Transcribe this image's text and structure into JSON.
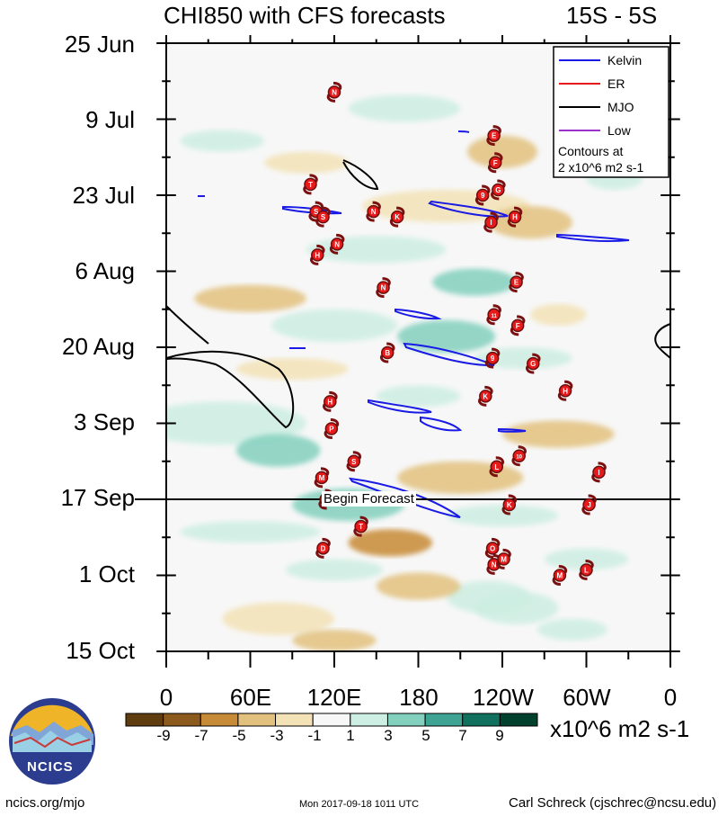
{
  "header": {
    "title_left": "CHI850 with CFS forecasts",
    "title_right": "15S - 5S"
  },
  "chart_data": {
    "type": "heatmap",
    "y_axis": {
      "direction": "time increasing downward",
      "range": [
        "25 Jun",
        "15 Oct"
      ],
      "tick_labels": [
        "25 Jun",
        "9 Jul",
        "23 Jul",
        "6 Aug",
        "20 Aug",
        "3 Sep",
        "17 Sep",
        "1 Oct",
        "15 Oct"
      ]
    },
    "x_axis": {
      "range_deg_east": [
        0,
        360
      ],
      "tick_labels": [
        "0",
        "60E",
        "120E",
        "180",
        "120W",
        "60W",
        "0"
      ]
    },
    "colorbar": {
      "labels": [
        "-9",
        "-7",
        "-5",
        "-3",
        "-1",
        "1",
        "3",
        "5",
        "7",
        "9"
      ],
      "units": "x10^6 m2 s-1",
      "colors": [
        "#603d0f",
        "#8c5a1d",
        "#c78a36",
        "#e2c17e",
        "#f3e2b6",
        "#f7f7f7",
        "#cdeee2",
        "#83d0be",
        "#3ea393",
        "#11705e",
        "#03412f"
      ]
    },
    "legend": {
      "placement": "top-right",
      "entries": [
        {
          "name": "Kelvin",
          "color": "#1a1ae6"
        },
        {
          "name": "ER",
          "color": "#e61a1a"
        },
        {
          "name": "MJO",
          "color": "#000000"
        },
        {
          "name": "Low",
          "color": "#9933cc"
        }
      ],
      "contour_note_1": "Contours at",
      "contour_note_2": "2 x10^6 m2 s-1"
    },
    "forecast_line": {
      "date": "17 Sep",
      "label": "Begin Forecast"
    },
    "storm_markers": [
      {
        "label": "N",
        "lon": 120,
        "day": 9
      },
      {
        "label": "E",
        "lon": 234,
        "day": 17
      },
      {
        "label": "F",
        "lon": 235,
        "day": 22
      },
      {
        "label": "T",
        "lon": 103,
        "day": 26
      },
      {
        "label": "S",
        "lon": 107,
        "day": 31
      },
      {
        "label": "S",
        "lon": 112,
        "day": 32
      },
      {
        "label": "N",
        "lon": 148,
        "day": 31
      },
      {
        "label": "K",
        "lon": 165,
        "day": 32
      },
      {
        "label": "9",
        "lon": 226,
        "day": 28
      },
      {
        "label": "G",
        "lon": 237,
        "day": 27
      },
      {
        "label": "I",
        "lon": 232,
        "day": 33
      },
      {
        "label": "H",
        "lon": 249,
        "day": 32
      },
      {
        "label": "N",
        "lon": 122,
        "day": 37
      },
      {
        "label": "H",
        "lon": 108,
        "day": 39
      },
      {
        "label": "N",
        "lon": 155,
        "day": 45
      },
      {
        "label": "E",
        "lon": 250,
        "day": 44
      },
      {
        "label": "11",
        "lon": 234,
        "day": 50
      },
      {
        "label": "F",
        "lon": 251,
        "day": 52
      },
      {
        "label": "B",
        "lon": 158,
        "day": 57
      },
      {
        "label": "9",
        "lon": 233,
        "day": 58
      },
      {
        "label": "G",
        "lon": 262,
        "day": 59
      },
      {
        "label": "H",
        "lon": 117,
        "day": 66
      },
      {
        "label": "K",
        "lon": 228,
        "day": 65
      },
      {
        "label": "H",
        "lon": 285,
        "day": 64
      },
      {
        "label": "P",
        "lon": 118,
        "day": 71
      },
      {
        "label": "S",
        "lon": 134,
        "day": 77
      },
      {
        "label": "10",
        "lon": 252,
        "day": 76
      },
      {
        "label": "L",
        "lon": 236,
        "day": 78
      },
      {
        "label": "I",
        "lon": 309,
        "day": 79
      },
      {
        "label": "M",
        "lon": 111,
        "day": 80
      },
      {
        "label": "G",
        "lon": 114,
        "day": 84
      },
      {
        "label": "K",
        "lon": 245,
        "day": 85
      },
      {
        "label": "J",
        "lon": 302,
        "day": 85
      },
      {
        "label": "T",
        "lon": 139,
        "day": 89
      },
      {
        "label": "D",
        "lon": 112,
        "day": 93
      },
      {
        "label": "O",
        "lon": 233,
        "day": 93
      },
      {
        "label": "N",
        "lon": 234,
        "day": 96
      },
      {
        "label": "M",
        "lon": 241,
        "day": 95
      },
      {
        "label": "M",
        "lon": 281,
        "day": 98
      },
      {
        "label": "L",
        "lon": 300,
        "day": 97
      }
    ]
  },
  "footer": {
    "left": "ncics.org/mjo",
    "center": "Mon 2017-09-18 1011 UTC",
    "right": "Carl Schreck (cjschrec@ncsu.edu)",
    "logo_text": "NCICS"
  }
}
